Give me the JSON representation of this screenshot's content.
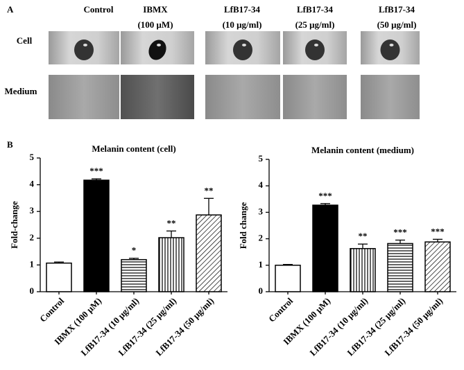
{
  "panel_a": {
    "label": "A",
    "columns": [
      [
        "Control"
      ],
      [
        "IBMX",
        "(100 μM)"
      ],
      [
        "LfB17-34",
        "(10 μg/ml)"
      ],
      [
        "LfB17-34",
        "(25 μg/ml)"
      ],
      [
        "LfB17-34",
        "(50 μg/ml)"
      ]
    ],
    "rows": [
      "Cell",
      "Medium"
    ]
  },
  "panel_b_label": "B",
  "chart_data": [
    {
      "type": "bar",
      "title": "Melanin content  (cell)",
      "y_label": "Fold-change",
      "categories": [
        "Control",
        "IBMX (100 μM)",
        "LfB17-34 (10 μg/ml)",
        "LfB17-34 (25 μg/ml)",
        "LfB17-34 (50 μg/ml)"
      ],
      "values": [
        1.07,
        4.17,
        1.2,
        2.02,
        2.87
      ],
      "errors": [
        0.04,
        0.05,
        0.05,
        0.25,
        0.62
      ],
      "significance": [
        null,
        "***",
        "*",
        "**",
        "**"
      ],
      "patterns": [
        "none",
        "solid",
        "horizontal",
        "vertical",
        "diagonal"
      ],
      "color": "#000000",
      "ylim": [
        0,
        5
      ],
      "yticks": [
        0,
        1,
        2,
        3,
        4,
        5
      ],
      "grid": false
    },
    {
      "type": "bar",
      "title": "Melanin content  (medium)",
      "y_label": "Fold change",
      "categories": [
        "Control",
        "IBMX (100 μM)",
        "LfB17-34 (10 μg/ml)",
        "LfB17-34 (25 μg/ml)",
        "LfB17-34 (50 μg/ml)"
      ],
      "values": [
        1.0,
        3.27,
        1.63,
        1.82,
        1.88
      ],
      "errors": [
        0.03,
        0.06,
        0.17,
        0.13,
        0.1
      ],
      "significance": [
        null,
        "***",
        "**",
        "***",
        "***"
      ],
      "patterns": [
        "none",
        "solid",
        "vertical",
        "horizontal",
        "diagonal"
      ],
      "color": "#000000",
      "ylim": [
        0,
        5
      ],
      "yticks": [
        0,
        1,
        2,
        3,
        4,
        5
      ],
      "grid": false
    }
  ]
}
